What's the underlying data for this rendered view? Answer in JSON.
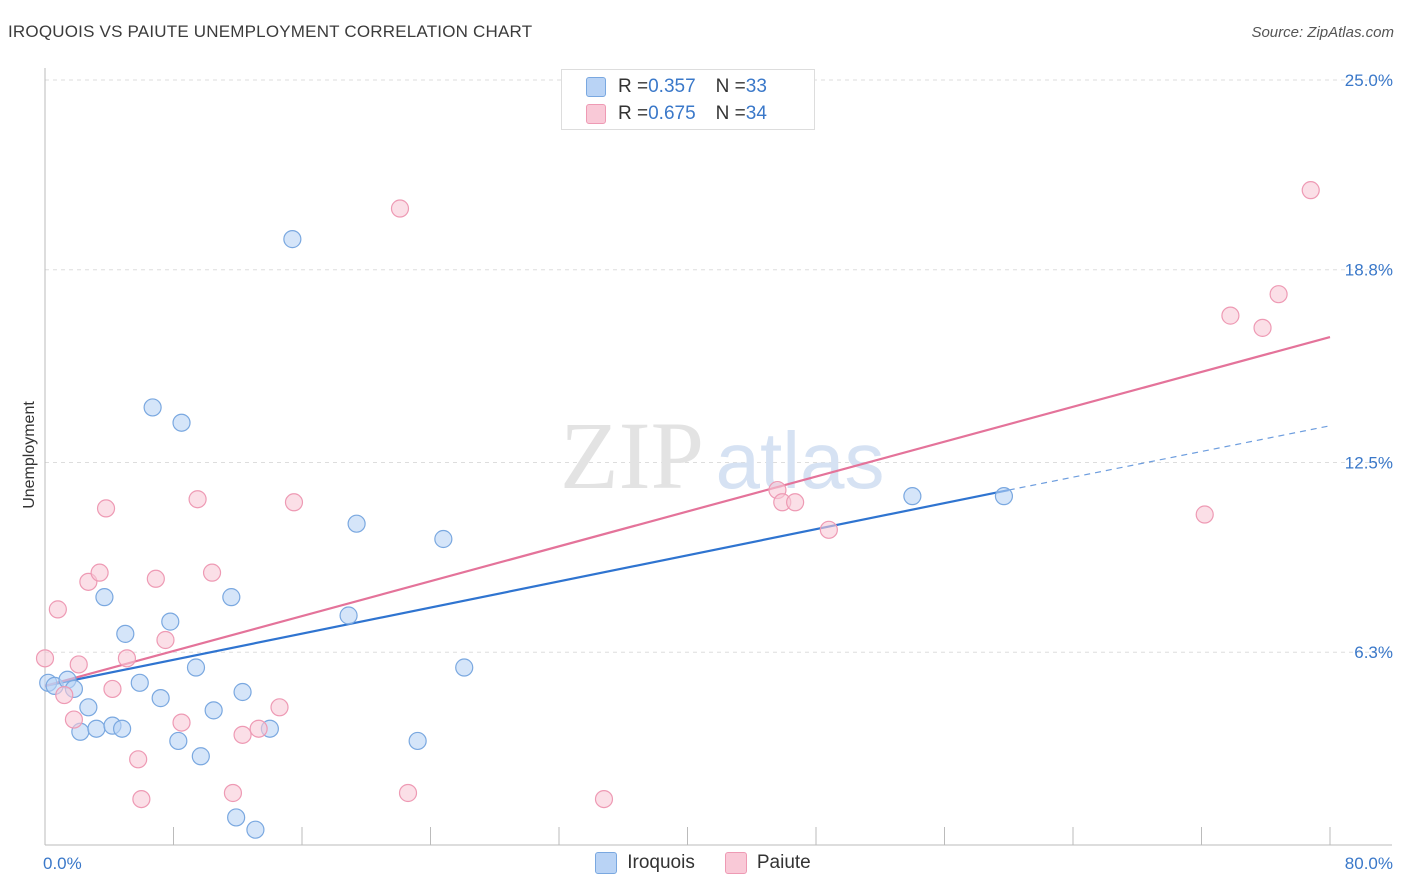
{
  "header": {
    "title": "IROQUOIS VS PAIUTE UNEMPLOYMENT CORRELATION CHART",
    "source": "Source: ZipAtlas.com"
  },
  "watermark": {
    "zip": "ZIP",
    "atlas": "atlas"
  },
  "legend_top": {
    "rows": [
      {
        "r_label": "R = ",
        "r_value": "0.357",
        "n_label": "N = ",
        "n_value": "33"
      },
      {
        "r_label": "R = ",
        "r_value": "0.675",
        "n_label": "N = ",
        "n_value": "34"
      }
    ]
  },
  "chart_data": {
    "type": "scatter",
    "title": "IROQUOIS VS PAIUTE UNEMPLOYMENT CORRELATION CHART",
    "xlabel": "",
    "ylabel": "Unemployment",
    "xlim": [
      0,
      80
    ],
    "ylim": [
      0,
      25
    ],
    "x_tick_labels": [
      "0.0%",
      "80.0%"
    ],
    "y_ticks": [
      {
        "value": 6.3,
        "label": "6.3%"
      },
      {
        "value": 12.5,
        "label": "12.5%"
      },
      {
        "value": 18.8,
        "label": "18.8%"
      },
      {
        "value": 25.0,
        "label": "25.0%"
      }
    ],
    "colors": {
      "iroquois_fill": "#b9d3f5",
      "iroquois_stroke": "#7aa8e0",
      "iroquois_line": "#2f74d0",
      "paiute_fill": "#f9c9d7",
      "paiute_stroke": "#ee9ab4",
      "paiute_line": "#e4739a",
      "tick_label": "#3a78c9",
      "grid": "#dddddd"
    },
    "series": [
      {
        "name": "Iroquois",
        "r": 0.357,
        "n": 33,
        "points": [
          [
            0.2,
            5.3
          ],
          [
            0.6,
            5.2
          ],
          [
            1.4,
            5.4
          ],
          [
            1.8,
            5.1
          ],
          [
            2.2,
            3.7
          ],
          [
            2.7,
            4.5
          ],
          [
            3.2,
            3.8
          ],
          [
            3.7,
            8.1
          ],
          [
            4.2,
            3.9
          ],
          [
            4.8,
            3.8
          ],
          [
            5.0,
            6.9
          ],
          [
            5.9,
            5.3
          ],
          [
            6.7,
            14.3
          ],
          [
            7.2,
            4.8
          ],
          [
            7.8,
            7.3
          ],
          [
            8.3,
            3.4
          ],
          [
            8.5,
            13.8
          ],
          [
            9.4,
            5.8
          ],
          [
            9.7,
            2.9
          ],
          [
            10.5,
            4.4
          ],
          [
            11.6,
            8.1
          ],
          [
            11.9,
            0.9
          ],
          [
            12.3,
            5.0
          ],
          [
            13.1,
            0.5
          ],
          [
            14.0,
            3.8
          ],
          [
            15.4,
            19.8
          ],
          [
            18.9,
            7.5
          ],
          [
            19.4,
            10.5
          ],
          [
            23.2,
            3.4
          ],
          [
            24.8,
            10.0
          ],
          [
            26.1,
            5.8
          ],
          [
            54.0,
            11.4
          ],
          [
            59.7,
            11.4
          ]
        ],
        "trend": {
          "x0": 0,
          "y0": 5.2,
          "x1": 60,
          "y1": 11.6,
          "ext_x1": 80,
          "ext_y1": 13.7
        }
      },
      {
        "name": "Paiute",
        "r": 0.675,
        "n": 34,
        "points": [
          [
            0.0,
            6.1
          ],
          [
            0.8,
            7.7
          ],
          [
            1.2,
            4.9
          ],
          [
            2.1,
            5.9
          ],
          [
            1.8,
            4.1
          ],
          [
            2.7,
            8.6
          ],
          [
            3.4,
            8.9
          ],
          [
            3.8,
            11.0
          ],
          [
            4.2,
            5.1
          ],
          [
            5.1,
            6.1
          ],
          [
            5.8,
            2.8
          ],
          [
            6.0,
            1.5
          ],
          [
            6.9,
            8.7
          ],
          [
            7.5,
            6.7
          ],
          [
            8.5,
            4.0
          ],
          [
            9.5,
            11.3
          ],
          [
            10.4,
            8.9
          ],
          [
            11.7,
            1.7
          ],
          [
            12.3,
            3.6
          ],
          [
            13.3,
            3.8
          ],
          [
            14.6,
            4.5
          ],
          [
            15.5,
            11.2
          ],
          [
            22.1,
            20.8
          ],
          [
            22.6,
            1.7
          ],
          [
            34.8,
            1.5
          ],
          [
            45.6,
            11.6
          ],
          [
            45.9,
            11.2
          ],
          [
            46.7,
            11.2
          ],
          [
            48.8,
            10.3
          ],
          [
            72.2,
            10.8
          ],
          [
            73.8,
            17.3
          ],
          [
            75.8,
            16.9
          ],
          [
            76.8,
            18.0
          ],
          [
            78.8,
            21.4
          ]
        ],
        "trend": {
          "x0": 0,
          "y0": 5.2,
          "x1": 80,
          "y1": 16.6
        }
      }
    ]
  },
  "legend_bottom": {
    "items": [
      {
        "label": "Iroquois"
      },
      {
        "label": "Paiute"
      }
    ]
  }
}
